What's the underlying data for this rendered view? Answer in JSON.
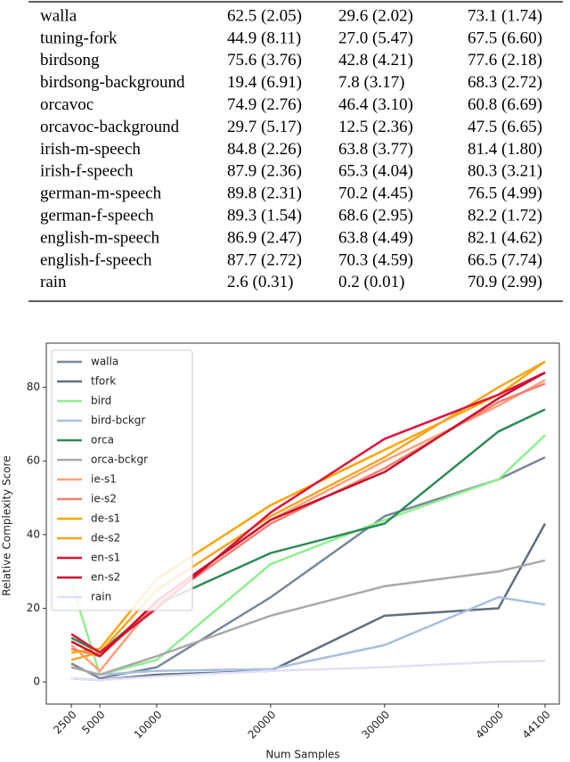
{
  "table": {
    "rows": [
      [
        "walla",
        "62.5 (2.05)",
        "29.6 (2.02)",
        "73.1 (1.74)"
      ],
      [
        "tuning-fork",
        "44.9 (8.11)",
        "27.0 (5.47)",
        "67.5 (6.60)"
      ],
      [
        "birdsong",
        "75.6 (3.76)",
        "42.8 (4.21)",
        "77.6 (2.18)"
      ],
      [
        "birdsong-background",
        "19.4 (6.91)",
        "7.8 (3.17)",
        "68.3 (2.72)"
      ],
      [
        "orcavoc",
        "74.9 (2.76)",
        "46.4 (3.10)",
        "60.8 (6.69)"
      ],
      [
        "orcavoc-background",
        "29.7 (5.17)",
        "12.5 (2.36)",
        "47.5 (6.65)"
      ],
      [
        "irish-m-speech",
        "84.8 (2.26)",
        "63.8 (3.77)",
        "81.4 (1.80)"
      ],
      [
        "irish-f-speech",
        "87.9 (2.36)",
        "65.3 (4.04)",
        "80.3 (3.21)"
      ],
      [
        "german-m-speech",
        "89.8 (2.31)",
        "70.2 (4.45)",
        "76.5 (4.99)"
      ],
      [
        "german-f-speech",
        "89.3 (1.54)",
        "68.6 (2.95)",
        "82.2 (1.72)"
      ],
      [
        "english-m-speech",
        "86.9 (2.47)",
        "63.8 (4.49)",
        "82.1 (4.62)"
      ],
      [
        "english-f-speech",
        "87.7 (2.72)",
        "70.3 (4.59)",
        "66.5 (7.74)"
      ],
      [
        "rain",
        "2.6 (0.31)",
        "0.2 (0.01)",
        "70.9 (2.99)"
      ]
    ]
  },
  "chart_data": {
    "type": "line",
    "x_label": "Num Samples",
    "y_label": "Relative Complexity Score",
    "x": [
      2500,
      5000,
      10000,
      20000,
      30000,
      40000,
      44100
    ],
    "xlim": [
      300,
      45350
    ],
    "ylim": [
      -6,
      92
    ],
    "xticks": [
      2500,
      5000,
      10000,
      20000,
      30000,
      40000,
      44100
    ],
    "yticks": [
      0,
      20,
      40,
      60,
      80
    ],
    "legend": "upper left",
    "series": [
      {
        "name": "walla",
        "color": "#778899",
        "values": [
          5,
          1,
          4,
          23,
          45,
          55,
          61
        ]
      },
      {
        "name": "tfork",
        "color": "#5f6f80",
        "values": [
          1,
          0.5,
          2,
          3,
          18,
          20,
          43
        ]
      },
      {
        "name": "bird",
        "color": "#90ee90",
        "values": [
          27,
          2,
          6,
          32,
          44,
          55,
          67
        ]
      },
      {
        "name": "bird-bckgr",
        "color": "#a9bfde",
        "values": [
          4,
          2,
          3,
          3.5,
          10,
          23,
          21
        ]
      },
      {
        "name": "orca",
        "color": "#2e8b57",
        "values": [
          12,
          8,
          21,
          35,
          43,
          68,
          74
        ]
      },
      {
        "name": "orca-bckgr",
        "color": "#a9a9a9",
        "values": [
          4,
          2,
          7,
          18,
          26,
          30,
          33
        ]
      },
      {
        "name": "ie-s1",
        "color": "#ffa07a",
        "values": [
          10,
          3,
          22,
          44,
          60,
          75,
          82
        ]
      },
      {
        "name": "ie-s2",
        "color": "#f08070",
        "values": [
          9,
          7,
          21,
          43,
          58,
          76,
          81
        ]
      },
      {
        "name": "de-s1",
        "color": "#ffa500",
        "values": [
          8,
          9,
          28,
          48,
          63,
          78,
          87
        ]
      },
      {
        "name": "de-s2",
        "color": "#f5a623",
        "values": [
          6,
          8,
          25,
          45,
          61,
          80,
          87
        ]
      },
      {
        "name": "en-s1",
        "color": "#dc143c",
        "values": [
          13,
          8,
          20,
          46,
          66,
          78,
          84
        ]
      },
      {
        "name": "en-s2",
        "color": "#c8102e",
        "values": [
          11,
          7,
          22,
          44,
          57,
          77,
          84
        ]
      },
      {
        "name": "rain",
        "color": "#e0e0f8",
        "values": [
          1,
          0.5,
          1.5,
          3,
          4,
          5.5,
          5.7
        ]
      }
    ]
  }
}
